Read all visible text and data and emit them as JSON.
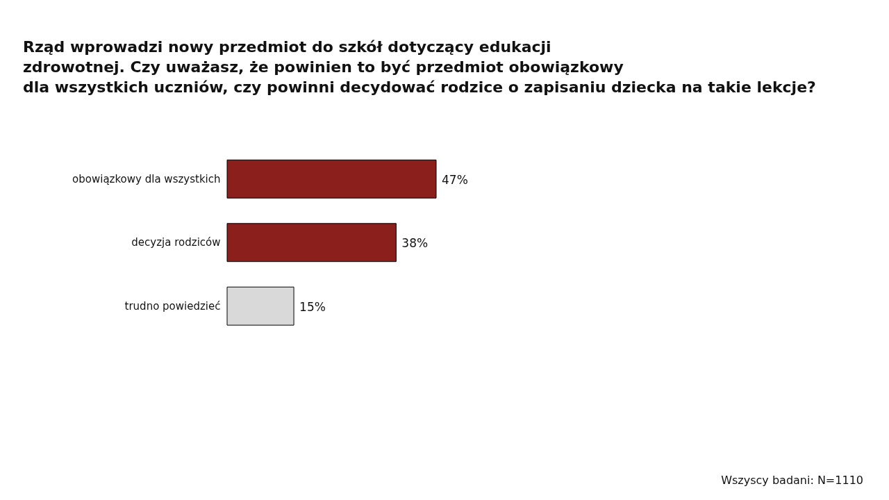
{
  "chart_data": {
    "type": "bar",
    "orientation": "horizontal",
    "title": "Rząd wprowadzi nowy przedmiot do szkół dotyczący edukacji\nzdrowotnej. Czy uważasz, że powinien to być przedmiot obowiązkowy\ndla wszystkich uczniów, czy powinni decydować rodzice o zapisaniu dziecka na takie lekcje?",
    "categories": [
      "obowiązkowy dla wszystkich",
      "decyzja rodziców",
      "trudno powiedzieć"
    ],
    "values": [
      47,
      38,
      15
    ],
    "colors": [
      "#8b1f1c",
      "#8b1f1c",
      "#d9d9d9"
    ],
    "value_labels": [
      "47%",
      "38%",
      "15%"
    ],
    "tick_labels": "y",
    "annotations": [
      "Wszyscy badani: N=1110"
    ]
  }
}
